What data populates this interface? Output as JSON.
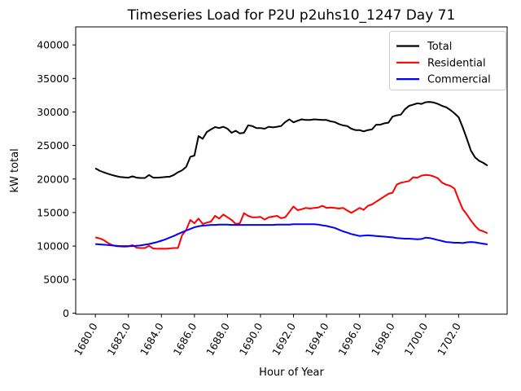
{
  "figure": {
    "title": "Timeseries Load for P2U p2uhs10_1247  Day 71",
    "background_color": "#ffffff"
  },
  "axes": {
    "xlabel": "Hour of Year",
    "ylabel": "kW total",
    "x_tick_values": [
      1680,
      1682,
      1684,
      1686,
      1688,
      1690,
      1692,
      1694,
      1696,
      1698,
      1700,
      1702
    ],
    "x_tick_labels": [
      "1680.0",
      "1682.0",
      "1684.0",
      "1686.0",
      "1688.0",
      "1690.0",
      "1692.0",
      "1694.0",
      "1696.0",
      "1698.0",
      "1700.0",
      "1702.0"
    ],
    "y_tick_values": [
      0,
      5000,
      10000,
      15000,
      20000,
      25000,
      30000,
      35000,
      40000
    ],
    "y_tick_labels": [
      "0",
      "5000",
      "10000",
      "15000",
      "20000",
      "25000",
      "30000",
      "35000",
      "40000"
    ]
  },
  "legend": {
    "position": "upper right",
    "entries": [
      {
        "label": "Total",
        "color": "#000000"
      },
      {
        "label": "Residential",
        "color": "#ff0000"
      },
      {
        "label": "Commercial",
        "color": "#0000ff"
      }
    ]
  },
  "chart_data": {
    "type": "line",
    "title": "Timeseries Load for P2U p2uhs10_1247  Day 71",
    "xlabel": "Hour of Year",
    "ylabel": "kW total",
    "xlim": [
      1678.81,
      1704.94
    ],
    "ylim": [
      -160,
      42690
    ],
    "grid": false,
    "legend_position": "upper right",
    "x_start": 1680.0,
    "x_step": 0.25,
    "n_points": 96,
    "series": [
      {
        "name": "Total",
        "color": "#000000",
        "values": [
          21600,
          21250,
          21000,
          20800,
          20600,
          20450,
          20300,
          20250,
          20200,
          20400,
          20200,
          20150,
          20150,
          20600,
          20200,
          20200,
          20250,
          20300,
          20350,
          20600,
          21000,
          21300,
          21800,
          23300,
          23500,
          26400,
          26000,
          27000,
          27400,
          27750,
          27600,
          27800,
          27500,
          26900,
          27200,
          26800,
          26900,
          28000,
          27900,
          27600,
          27600,
          27500,
          27800,
          27700,
          27800,
          27900,
          28500,
          28900,
          28450,
          28700,
          28900,
          28800,
          28800,
          28900,
          28850,
          28800,
          28800,
          28600,
          28500,
          28200,
          28000,
          27900,
          27500,
          27300,
          27300,
          27100,
          27300,
          27400,
          28100,
          28100,
          28300,
          28400,
          29300,
          29500,
          29600,
          30400,
          30900,
          31100,
          31300,
          31200,
          31450,
          31500,
          31400,
          31200,
          30900,
          30700,
          30300,
          29800,
          29200,
          27700,
          26000,
          24200,
          23200,
          22700,
          22400,
          22000
        ]
      },
      {
        "name": "Residential",
        "color": "#ff0000",
        "values": [
          11300,
          11150,
          10900,
          10500,
          10150,
          10000,
          9950,
          9900,
          9950,
          10150,
          9750,
          9700,
          9700,
          10050,
          9650,
          9600,
          9620,
          9600,
          9650,
          9700,
          9700,
          11600,
          12400,
          13900,
          13400,
          14100,
          13300,
          13500,
          13650,
          14500,
          14100,
          14700,
          14300,
          13900,
          13300,
          13400,
          14900,
          14500,
          14300,
          14300,
          14350,
          13950,
          14300,
          14400,
          14500,
          14150,
          14300,
          15100,
          15900,
          15350,
          15500,
          15700,
          15600,
          15700,
          15750,
          16000,
          15700,
          15750,
          15700,
          15600,
          15700,
          15300,
          14950,
          15300,
          15700,
          15400,
          16000,
          16200,
          16600,
          17000,
          17400,
          17800,
          17950,
          19160,
          19450,
          19570,
          19700,
          20260,
          20180,
          20500,
          20600,
          20550,
          20380,
          20100,
          19450,
          19160,
          18970,
          18560,
          16940,
          15520,
          14700,
          13800,
          13000,
          12400,
          12200,
          11900
        ]
      },
      {
        "name": "Commercial",
        "color": "#0000ff",
        "values": [
          10300,
          10250,
          10200,
          10150,
          10100,
          10050,
          10000,
          10000,
          10000,
          10000,
          10050,
          10100,
          10200,
          10300,
          10450,
          10600,
          10800,
          11000,
          11260,
          11500,
          11800,
          12050,
          12300,
          12550,
          12800,
          12950,
          13050,
          13100,
          13150,
          13150,
          13200,
          13200,
          13200,
          13150,
          13150,
          13150,
          13150,
          13150,
          13150,
          13150,
          13150,
          13150,
          13150,
          13150,
          13200,
          13200,
          13200,
          13200,
          13250,
          13250,
          13250,
          13250,
          13250,
          13250,
          13200,
          13100,
          13000,
          12850,
          12700,
          12450,
          12200,
          12000,
          11800,
          11650,
          11500,
          11550,
          11600,
          11550,
          11500,
          11450,
          11400,
          11350,
          11300,
          11200,
          11150,
          11100,
          11100,
          11050,
          11000,
          11050,
          11250,
          11200,
          11050,
          10900,
          10750,
          10600,
          10550,
          10500,
          10500,
          10450,
          10550,
          10600,
          10550,
          10450,
          10350,
          10250
        ]
      }
    ]
  }
}
